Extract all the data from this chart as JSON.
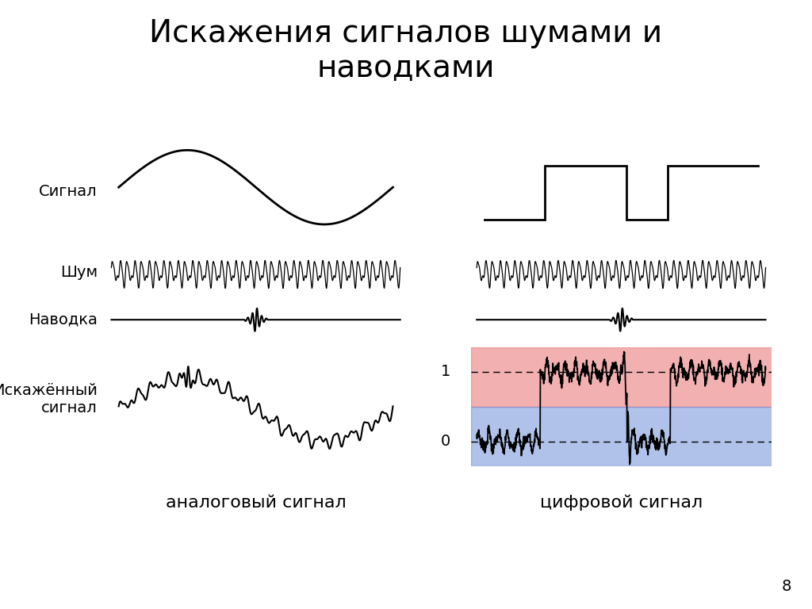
{
  "title": "Искажения сигналов шумами и\nнаводками",
  "title_fontsize": 28,
  "bg_color": "#ffffff",
  "text_color": "#000000",
  "signal_color": "#000000",
  "label_signal": "Сигнал",
  "label_shum": "Шум",
  "label_navodka": "Наводка",
  "label_iskaj": "Искажённый\nсигнал",
  "label_analog": "аналоговый сигнал",
  "label_digital": "цифровой сигнал",
  "label_0": "0",
  "label_1": "1",
  "label_page": "8",
  "red_color": "#e87070",
  "blue_color": "#7090d8",
  "red_zone_alpha": 0.55,
  "blue_zone_alpha": 0.55
}
